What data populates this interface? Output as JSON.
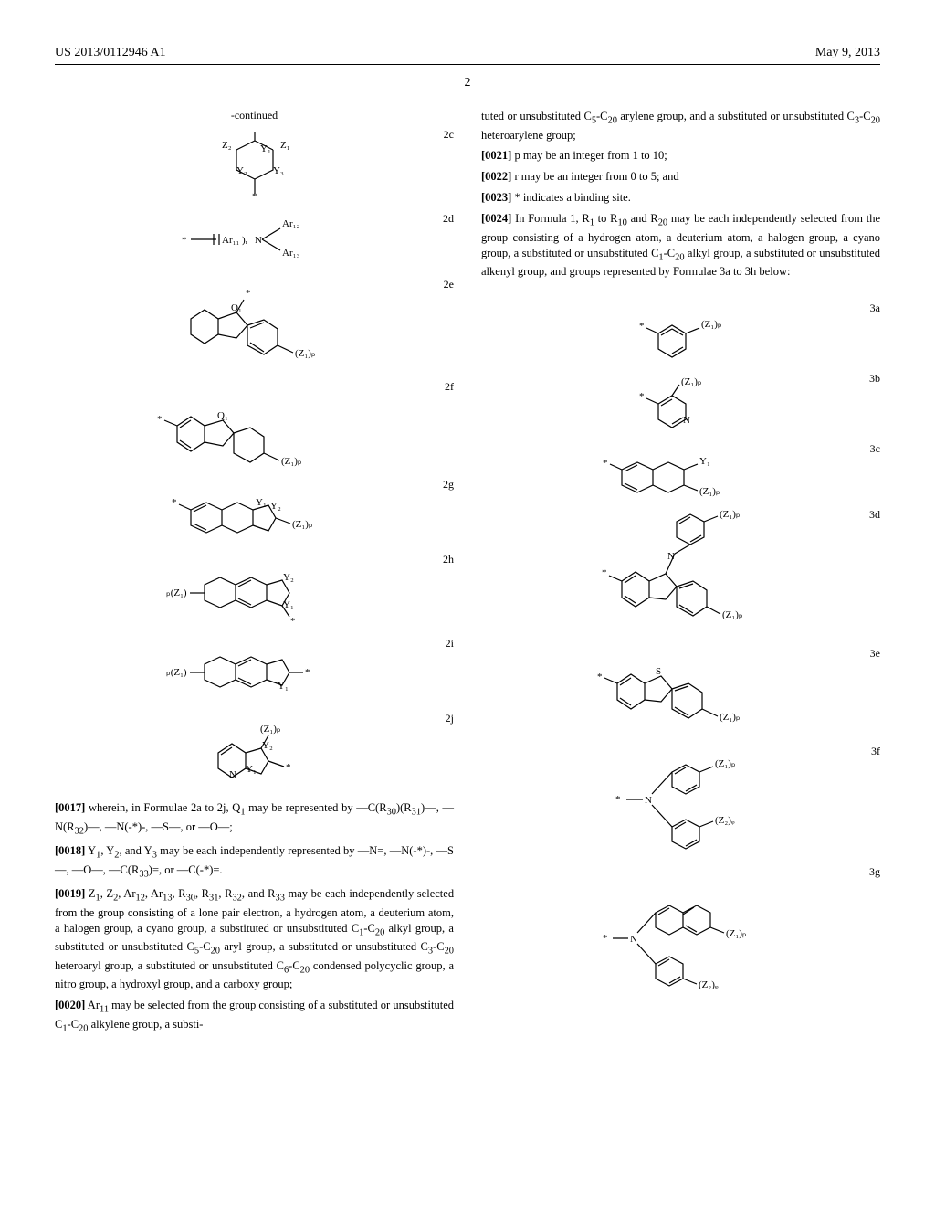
{
  "header": {
    "pub_number": "US 2013/0112946 A1",
    "pub_date": "May 9, 2013"
  },
  "page_number": "2",
  "left_column": {
    "continued_label": "-continued",
    "formulae": [
      {
        "label": "2c"
      },
      {
        "label": "2d"
      },
      {
        "label": "2e"
      },
      {
        "label": "2f"
      },
      {
        "label": "2g"
      },
      {
        "label": "2h"
      },
      {
        "label": "2i"
      },
      {
        "label": "2j"
      }
    ],
    "paras": [
      {
        "num": "[0017]",
        "html": "wherein, in Formulae 2a to 2j, Q<sub>1</sub> may be represented by —C(R<sub>30</sub>)(R<sub>31</sub>)—, —N(R<sub>32</sub>)—, —N(-*)-, —S—, or —O—;"
      },
      {
        "num": "[0018]",
        "html": "Y<sub>1</sub>, Y<sub>2</sub>, and Y<sub>3</sub> may be each independently represented by —N=, —N(-*)-, —S—, —O—, —C(R<sub>33</sub>)=, or —C(-*)=."
      },
      {
        "num": "[0019]",
        "html": "Z<sub>1</sub>, Z<sub>2</sub>, Ar<sub>12</sub>, Ar<sub>13</sub>, R<sub>30</sub>, R<sub>31</sub>, R<sub>32</sub>, and R<sub>33</sub> may be each independently selected from the group consisting of a lone pair electron, a hydrogen atom, a deuterium atom, a halogen group, a cyano group, a substituted or unsubstituted C<sub>1</sub>-C<sub>20</sub> alkyl group, a substituted or unsubstituted C<sub>5</sub>-C<sub>20</sub> aryl group, a substituted or unsubstituted C<sub>3</sub>-C<sub>20</sub> heteroaryl group, a substituted or unsubstituted C<sub>6</sub>-C<sub>20</sub> condensed polycyclic group, a nitro group, a hydroxyl group, and a carboxy group;"
      },
      {
        "num": "[0020]",
        "html": "Ar<sub>11</sub> may be selected from the group consisting of a substituted or unsubstituted C<sub>1</sub>-C<sub>20</sub> alkylene group, a substi-"
      }
    ]
  },
  "right_column": {
    "top_continuation": "tuted or unsubstituted C<sub>5</sub>-C<sub>20</sub> arylene group, and a substituted or unsubstituted C<sub>3</sub>-C<sub>20</sub> heteroarylene group;",
    "paras_top": [
      {
        "num": "[0021]",
        "html": "p may be an integer from 1 to 10;"
      },
      {
        "num": "[0022]",
        "html": "r may be an integer from 0 to 5; and"
      },
      {
        "num": "[0023]",
        "html": "* indicates a binding site."
      },
      {
        "num": "[0024]",
        "html": "In Formula 1, R<sub>1</sub> to R<sub>10</sub> and R<sub>20</sub> may be each independently selected from the group consisting of a hydrogen atom, a deuterium atom, a halogen group, a cyano group, a substituted or unsubstituted C<sub>1</sub>-C<sub>20</sub> alkyl group, a substituted or unsubstituted alkenyl group, and groups represented by Formulae 3a to 3h below:"
      }
    ],
    "formulae": [
      {
        "label": "3a"
      },
      {
        "label": "3b"
      },
      {
        "label": "3c"
      },
      {
        "label": "3d"
      },
      {
        "label": "3e"
      },
      {
        "label": "3f"
      },
      {
        "label": "3g"
      }
    ]
  },
  "style": {
    "stroke": "#000000",
    "stroke_width": 1.2,
    "font_size_label": 11,
    "font_size_body": 12.5
  }
}
